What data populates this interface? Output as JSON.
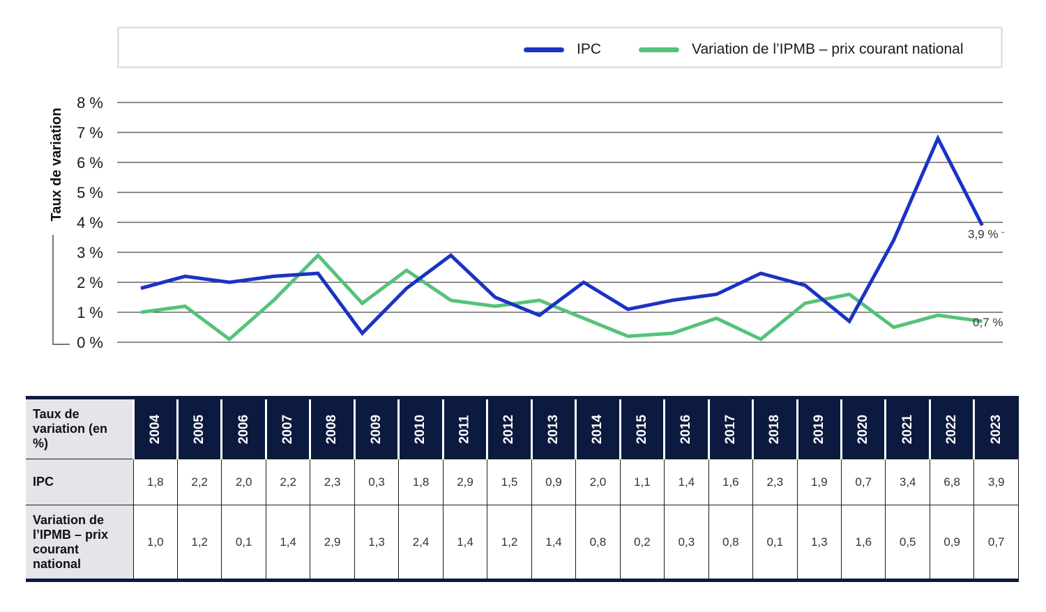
{
  "legend": {
    "ipc_label": "IPC",
    "ipmb_label": "Variation de l’IPMB – prix courant national"
  },
  "colors": {
    "ipc": "#1a33c4",
    "ipmb": "#55c27a",
    "grid": "#1a1a1a",
    "table_header": "#0d1a3f",
    "row_header_bg": "#e3e5e9"
  },
  "chart_data": {
    "type": "line",
    "ylabel": "Taux de variation",
    "yticks": [
      "0 %",
      "1 %",
      "2 %",
      "3 %",
      "4 %",
      "5 %",
      "6 %",
      "7 %",
      "8 %"
    ],
    "ylim": [
      0,
      8
    ],
    "grid": true,
    "legend_position": "top",
    "x": [
      "2004",
      "2005",
      "2006",
      "2007",
      "2008",
      "2009",
      "2010",
      "2011",
      "2012",
      "2013",
      "2014",
      "2015",
      "2016",
      "2017",
      "2018",
      "2019",
      "2020",
      "2021",
      "2022",
      "2023"
    ],
    "series": [
      {
        "name": "IPC",
        "values": [
          1.8,
          2.2,
          2.0,
          2.2,
          2.3,
          0.3,
          1.8,
          2.9,
          1.5,
          0.9,
          2.0,
          1.1,
          1.4,
          1.6,
          2.3,
          1.9,
          0.7,
          3.4,
          6.8,
          3.9
        ],
        "end_label": "3,9 %"
      },
      {
        "name": "Variation de l’IPMB – prix courant national",
        "values": [
          1.0,
          1.2,
          0.1,
          1.4,
          2.9,
          1.3,
          2.4,
          1.4,
          1.2,
          1.4,
          0.8,
          0.2,
          0.3,
          0.8,
          0.1,
          1.3,
          1.6,
          0.5,
          0.9,
          0.7
        ],
        "end_label": "0,7 %"
      }
    ]
  },
  "table": {
    "corner_label": "Taux de variation (en %)",
    "years": [
      "2004",
      "2005",
      "2006",
      "2007",
      "2008",
      "2009",
      "2010",
      "2011",
      "2012",
      "2013",
      "2014",
      "2015",
      "2016",
      "2017",
      "2018",
      "2019",
      "2020",
      "2021",
      "2022",
      "2023"
    ],
    "rows": [
      {
        "label": "IPC",
        "values": [
          "1,8",
          "2,2",
          "2,0",
          "2,2",
          "2,3",
          "0,3",
          "1,8",
          "2,9",
          "1,5",
          "0,9",
          "2,0",
          "1,1",
          "1,4",
          "1,6",
          "2,3",
          "1,9",
          "0,7",
          "3,4",
          "6,8",
          "3,9"
        ]
      },
      {
        "label": "Variation de l’IPMB – prix courant national",
        "values": [
          "1,0",
          "1,2",
          "0,1",
          "1,4",
          "2,9",
          "1,3",
          "2,4",
          "1,4",
          "1,2",
          "1,4",
          "0,8",
          "0,2",
          "0,3",
          "0,8",
          "0,1",
          "1,3",
          "1,6",
          "0,5",
          "0,9",
          "0,7"
        ]
      }
    ]
  }
}
